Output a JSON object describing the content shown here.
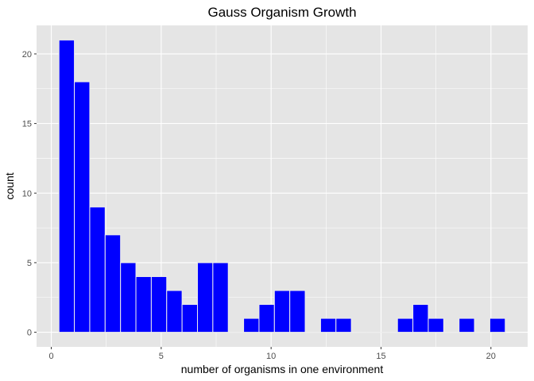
{
  "chart_data": {
    "type": "bar",
    "title": "Gauss Organism Growth",
    "xlabel": "number of organisms in one environment",
    "ylabel": "count",
    "bins": [
      {
        "start": 0.35,
        "end": 1.05,
        "count": 21
      },
      {
        "start": 1.05,
        "end": 1.75,
        "count": 18
      },
      {
        "start": 1.75,
        "end": 2.45,
        "count": 9
      },
      {
        "start": 2.45,
        "end": 3.15,
        "count": 7
      },
      {
        "start": 3.15,
        "end": 3.85,
        "count": 5
      },
      {
        "start": 3.85,
        "end": 4.55,
        "count": 4
      },
      {
        "start": 4.55,
        "end": 5.25,
        "count": 4
      },
      {
        "start": 5.25,
        "end": 5.95,
        "count": 3
      },
      {
        "start": 5.95,
        "end": 6.65,
        "count": 2
      },
      {
        "start": 6.65,
        "end": 7.35,
        "count": 5
      },
      {
        "start": 7.35,
        "end": 8.05,
        "count": 5
      },
      {
        "start": 8.05,
        "end": 8.75,
        "count": 0
      },
      {
        "start": 8.75,
        "end": 9.45,
        "count": 1
      },
      {
        "start": 9.45,
        "end": 10.15,
        "count": 2
      },
      {
        "start": 10.15,
        "end": 10.85,
        "count": 3
      },
      {
        "start": 10.85,
        "end": 11.55,
        "count": 3
      },
      {
        "start": 11.55,
        "end": 12.25,
        "count": 0
      },
      {
        "start": 12.25,
        "end": 12.95,
        "count": 1
      },
      {
        "start": 12.95,
        "end": 13.65,
        "count": 1
      },
      {
        "start": 13.65,
        "end": 14.35,
        "count": 0
      },
      {
        "start": 14.35,
        "end": 15.05,
        "count": 0
      },
      {
        "start": 15.05,
        "end": 15.75,
        "count": 0
      },
      {
        "start": 15.75,
        "end": 16.45,
        "count": 1
      },
      {
        "start": 16.45,
        "end": 17.15,
        "count": 2
      },
      {
        "start": 17.15,
        "end": 17.85,
        "count": 1
      },
      {
        "start": 17.85,
        "end": 18.55,
        "count": 0
      },
      {
        "start": 18.55,
        "end": 19.25,
        "count": 1
      },
      {
        "start": 19.25,
        "end": 19.95,
        "count": 0
      },
      {
        "start": 19.95,
        "end": 20.65,
        "count": 1
      }
    ],
    "xlim": [
      -0.67,
      21.67
    ],
    "ylim": [
      -1.05,
      22.05
    ],
    "x_ticks": [
      0,
      5,
      10,
      15,
      20
    ],
    "y_ticks": [
      0,
      5,
      10,
      15,
      20
    ],
    "grid": true,
    "bar_fill": "#0000ff",
    "bar_outline": "#ececec",
    "panel_background": "#e5e5e5",
    "grid_color": "#ffffff"
  }
}
